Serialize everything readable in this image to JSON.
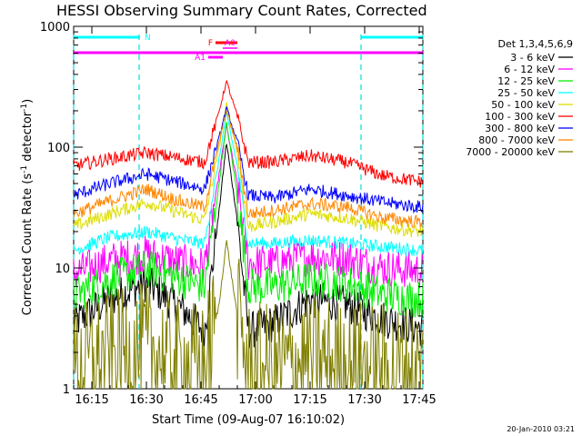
{
  "chart_data": {
    "type": "line",
    "title": "HESSI Observing Summary Count Rates, Corrected",
    "xlabel": "Start Time (09-Aug-07 16:10:02)",
    "ylabel_main": "Corrected Count Rate (s",
    "ylabel_sup1": "-1",
    "ylabel_mid": " detector",
    "ylabel_sup2": "-1",
    "ylabel_end": ")",
    "ylog": true,
    "ylim": [
      1,
      1000
    ],
    "xlim": [
      "16:10",
      "17:46"
    ],
    "xticks": [
      "16:15",
      "16:30",
      "16:45",
      "17:00",
      "17:15",
      "17:30",
      "17:45"
    ],
    "yticks": [
      "1",
      "10",
      "100",
      "1000"
    ],
    "grid": false,
    "legend_position": "right",
    "legend_header": "Det 1,3,4,5,6,9",
    "timestamp": "20-Jan-2010 03:21",
    "peak_time": "16:52",
    "series": [
      {
        "name": "3 - 6 keV",
        "color": "#000000",
        "x": [
          "16:10",
          "16:20",
          "16:30",
          "16:40",
          "16:46",
          "16:50",
          "16:52",
          "16:55",
          "16:58",
          "17:05",
          "17:15",
          "17:25",
          "17:35",
          "17:45"
        ],
        "y": [
          3.5,
          5.5,
          7.5,
          4.5,
          3.0,
          30,
          110,
          25,
          3.0,
          3.5,
          5.5,
          5,
          3.8,
          3.2
        ]
      },
      {
        "name": "6 - 12 keV",
        "color": "#ff00ff",
        "x": [
          "16:10",
          "16:20",
          "16:30",
          "16:40",
          "16:46",
          "16:50",
          "16:52",
          "16:55",
          "16:58",
          "17:05",
          "17:15",
          "17:25",
          "17:35",
          "17:45"
        ],
        "y": [
          9,
          11.5,
          13,
          11,
          10.5,
          60,
          150,
          50,
          11,
          11,
          12.5,
          12,
          10,
          9.5
        ]
      },
      {
        "name": "12 - 25 keV",
        "color": "#00ee00",
        "x": [
          "16:10",
          "16:20",
          "16:30",
          "16:40",
          "16:46",
          "16:50",
          "16:52",
          "16:55",
          "16:58",
          "17:05",
          "17:15",
          "17:25",
          "17:35",
          "17:45"
        ],
        "y": [
          6,
          8,
          10,
          8,
          7,
          50,
          160,
          40,
          7,
          7,
          8,
          7.5,
          6,
          5.5
        ]
      },
      {
        "name": "25 - 50 keV",
        "color": "#00ffff",
        "x": [
          "16:10",
          "16:20",
          "16:30",
          "16:40",
          "16:46",
          "16:50",
          "16:52",
          "16:55",
          "16:58",
          "17:05",
          "17:15",
          "17:25",
          "17:35",
          "17:45"
        ],
        "y": [
          14,
          18,
          20,
          17,
          16,
          80,
          190,
          70,
          16,
          16,
          17,
          16,
          15,
          14
        ]
      },
      {
        "name": "50 - 100 keV",
        "color": "#dddd00",
        "x": [
          "16:10",
          "16:20",
          "16:30",
          "16:40",
          "16:46",
          "16:50",
          "16:52",
          "16:55",
          "16:58",
          "17:05",
          "17:15",
          "17:25",
          "17:35",
          "17:45"
        ],
        "y": [
          22,
          28,
          35,
          28,
          25,
          100,
          230,
          90,
          22,
          24,
          28,
          26,
          22,
          20
        ]
      },
      {
        "name": "100 - 300 keV",
        "color": "#ff0000",
        "x": [
          "16:10",
          "16:20",
          "16:30",
          "16:40",
          "16:46",
          "16:50",
          "16:52",
          "16:55",
          "16:58",
          "17:05",
          "17:15",
          "17:25",
          "17:35",
          "17:45"
        ],
        "y": [
          70,
          80,
          90,
          80,
          75,
          200,
          350,
          180,
          75,
          75,
          85,
          75,
          58,
          52
        ]
      },
      {
        "name": "300 - 800 keV",
        "color": "#0000ff",
        "x": [
          "16:10",
          "16:20",
          "16:30",
          "16:40",
          "16:46",
          "16:50",
          "16:52",
          "16:55",
          "16:58",
          "17:05",
          "17:15",
          "17:25",
          "17:35",
          "17:45"
        ],
        "y": [
          40,
          50,
          60,
          50,
          45,
          120,
          210,
          110,
          40,
          38,
          45,
          40,
          35,
          32
        ]
      },
      {
        "name": "800 - 7000 keV",
        "color": "#ff8800",
        "x": [
          "16:10",
          "16:20",
          "16:30",
          "16:40",
          "16:46",
          "16:50",
          "16:52",
          "16:55",
          "16:58",
          "17:05",
          "17:15",
          "17:25",
          "17:35",
          "17:45"
        ],
        "y": [
          28,
          36,
          45,
          35,
          32,
          110,
          200,
          100,
          28,
          30,
          34,
          32,
          26,
          24
        ]
      },
      {
        "name": "7000 - 20000 keV",
        "color": "#808000",
        "x": [
          "16:10",
          "16:20",
          "16:30",
          "16:40",
          "16:46",
          "16:50",
          "16:52",
          "16:55",
          "16:58",
          "17:05",
          "17:15",
          "17:25",
          "17:35",
          "17:45"
        ],
        "y": [
          1.5,
          1.8,
          2.2,
          1.6,
          1.5,
          5,
          17,
          4,
          1.5,
          1.5,
          1.7,
          1.6,
          1.5,
          1.4
        ]
      }
    ],
    "status_bars": [
      {
        "label": "N",
        "color": "#00ffff",
        "segments": [
          [
            "16:10",
            "16:28"
          ],
          [
            "17:29",
            "17:46"
          ]
        ]
      },
      {
        "label": "",
        "color": "#ff00ff",
        "segments": [
          [
            "16:10",
            "17:46"
          ]
        ]
      },
      {
        "label": "F",
        "color": "#ff0000",
        "segments": [
          [
            "16:49",
            "16:55"
          ]
        ]
      },
      {
        "label": "A0",
        "color": "#ff00ff",
        "segments": [
          [
            "16:51",
            "16:55"
          ]
        ]
      },
      {
        "label": "A1",
        "color": "#ff00ff",
        "segments": [
          [
            "16:47",
            "16:51"
          ]
        ]
      }
    ],
    "vlines": [
      "16:10",
      "16:28",
      "17:29",
      "17:46"
    ]
  }
}
